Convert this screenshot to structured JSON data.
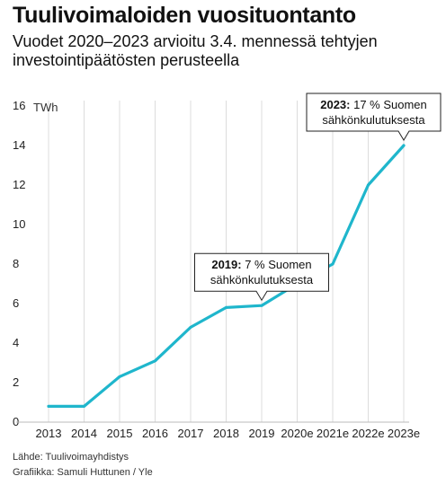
{
  "chart_data": {
    "type": "line",
    "title": "Tuulivoimaloiden vuosituontanto",
    "subtitle": "Vuodet 2020–2023 arvioitu 3.4. mennessä tehtyjen investointipäätösten perusteella",
    "x": [
      "2013",
      "2014",
      "2015",
      "2016",
      "2017",
      "2018",
      "2019",
      "2020e",
      "2021e",
      "2022e",
      "2023e"
    ],
    "series": [
      {
        "values": [
          0.8,
          0.8,
          2.3,
          3.1,
          4.8,
          5.8,
          5.9,
          7.0,
          8.0,
          12.0,
          14.0
        ]
      }
    ],
    "ylim": [
      0,
      16
    ],
    "yticks": [
      0,
      2,
      4,
      6,
      8,
      10,
      12,
      14,
      16
    ],
    "ytick_labels": [
      "0",
      "2",
      "4",
      "6",
      "8",
      "10",
      "12",
      "14",
      "16"
    ],
    "yunit": "TWh",
    "grid": "vertical",
    "line_color": "#1fb6cc",
    "annotations": [
      {
        "bold": "2019:",
        "text": "7 % Suomen",
        "line2": "sähkönkulutuksesta",
        "x": "2019",
        "y": 5.9
      },
      {
        "bold": "2023:",
        "text": "17 % Suomen",
        "line2": "sähkönkulutuksesta",
        "x": "2023e",
        "y": 14.0
      }
    ]
  },
  "footer": {
    "source": "Lähde: Tuulivoimayhdistys",
    "credit": "Grafiikka: Samuli Huttunen / Yle"
  }
}
